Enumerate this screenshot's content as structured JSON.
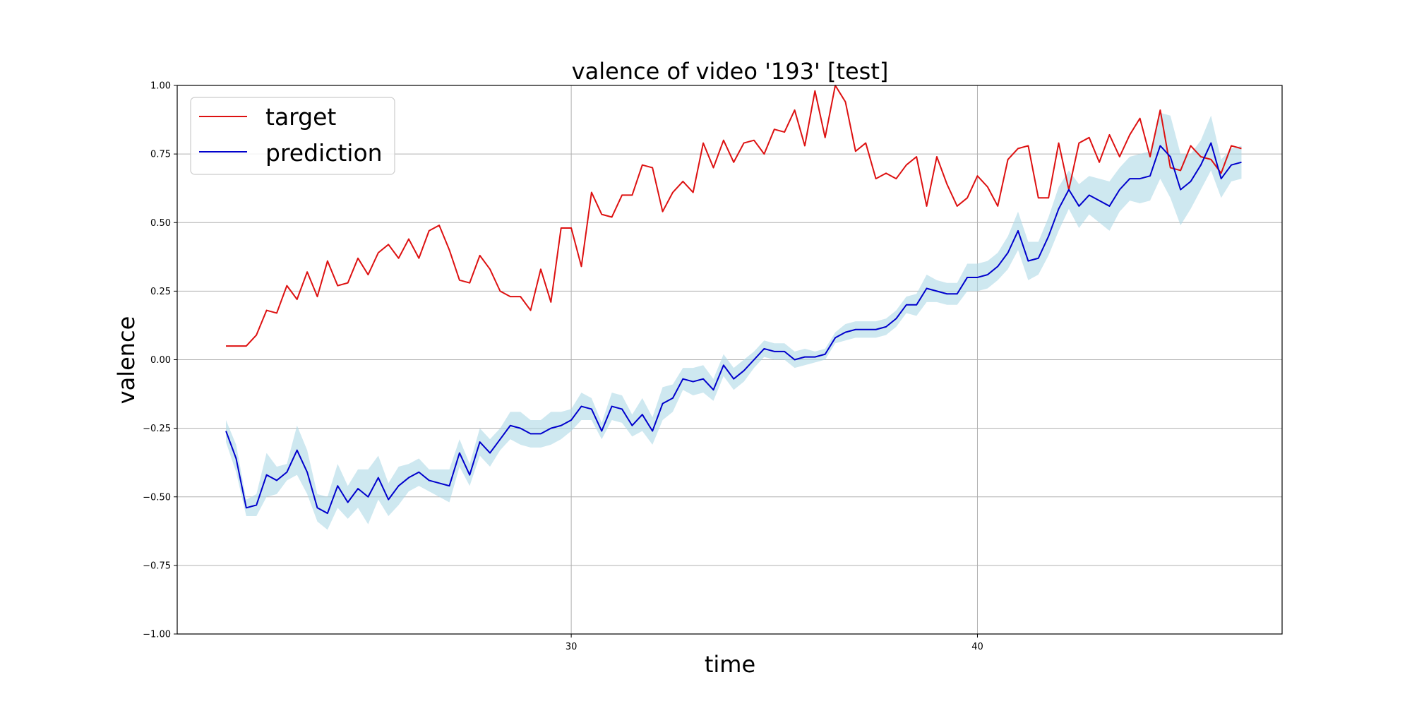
{
  "chart_data": {
    "type": "line",
    "title": "valence of video '193' [test]",
    "xlabel": "time",
    "ylabel": "valence",
    "xlim": [
      20.3,
      47.5
    ],
    "ylim": [
      -1.0,
      1.0
    ],
    "x_ticks": [
      30,
      40
    ],
    "x_tick_labels": [
      "30",
      "40"
    ],
    "y_ticks": [
      -1.0,
      -0.75,
      -0.5,
      -0.25,
      0.0,
      0.25,
      0.5,
      0.75,
      1.0
    ],
    "y_tick_labels": [
      "−1.00",
      "−0.75",
      "−0.50",
      "−0.25",
      "0.00",
      "0.25",
      "0.50",
      "0.75",
      "1.00"
    ],
    "grid": true,
    "legend_position": "top-left",
    "colors": {
      "target": "#dd1111",
      "prediction": "#0000cc",
      "band": "#add8e6"
    },
    "x": [
      21.5,
      21.75,
      22.0,
      22.25,
      22.5,
      22.75,
      23.0,
      23.25,
      23.5,
      23.75,
      24.0,
      24.25,
      24.5,
      24.75,
      25.0,
      25.25,
      25.5,
      25.75,
      26.0,
      26.25,
      26.5,
      26.75,
      27.0,
      27.25,
      27.5,
      27.75,
      28.0,
      28.25,
      28.5,
      28.75,
      29.0,
      29.25,
      29.5,
      29.75,
      30.0,
      30.25,
      30.5,
      30.75,
      31.0,
      31.25,
      31.5,
      31.75,
      32.0,
      32.25,
      32.5,
      32.75,
      33.0,
      33.25,
      33.5,
      33.75,
      34.0,
      34.25,
      34.5,
      34.75,
      35.0,
      35.25,
      35.5,
      35.75,
      36.0,
      36.25,
      36.5,
      36.75,
      37.0,
      37.25,
      37.5,
      37.75,
      38.0,
      38.25,
      38.5,
      38.75,
      39.0,
      39.25,
      39.5,
      39.75,
      40.0,
      40.25,
      40.5,
      40.75,
      41.0,
      41.25,
      41.5,
      41.75,
      42.0,
      42.25,
      42.5,
      42.75,
      43.0,
      43.25,
      43.5,
      43.75,
      44.0,
      44.25,
      44.5,
      44.75,
      45.0,
      45.25,
      45.5,
      45.75,
      46.0,
      46.25,
      46.5
    ],
    "series": [
      {
        "name": "target",
        "values": [
          0.05,
          0.05,
          0.05,
          0.09,
          0.18,
          0.17,
          0.27,
          0.22,
          0.32,
          0.23,
          0.36,
          0.27,
          0.28,
          0.37,
          0.31,
          0.39,
          0.42,
          0.37,
          0.44,
          0.37,
          0.47,
          0.49,
          0.4,
          0.29,
          0.28,
          0.38,
          0.33,
          0.25,
          0.23,
          0.23,
          0.18,
          0.33,
          0.21,
          0.48,
          0.48,
          0.34,
          0.61,
          0.53,
          0.52,
          0.6,
          0.6,
          0.71,
          0.7,
          0.54,
          0.61,
          0.65,
          0.61,
          0.79,
          0.7,
          0.8,
          0.72,
          0.79,
          0.8,
          0.75,
          0.84,
          0.83,
          0.91,
          0.78,
          0.98,
          0.81,
          1.0,
          0.94,
          0.76,
          0.79,
          0.66,
          0.68,
          0.66,
          0.71,
          0.74,
          0.56,
          0.74,
          0.64,
          0.56,
          0.59,
          0.67,
          0.63,
          0.56,
          0.73,
          0.77,
          0.78,
          0.59,
          0.59,
          0.79,
          0.62,
          0.79,
          0.81,
          0.72,
          0.82,
          0.74,
          0.82,
          0.88,
          0.74,
          0.91,
          0.7,
          0.69,
          0.78,
          0.74,
          0.73,
          0.68,
          0.78,
          0.77
        ]
      },
      {
        "name": "prediction",
        "values": [
          -0.26,
          -0.36,
          -0.54,
          -0.53,
          -0.42,
          -0.44,
          -0.41,
          -0.33,
          -0.41,
          -0.54,
          -0.56,
          -0.46,
          -0.52,
          -0.47,
          -0.5,
          -0.43,
          -0.51,
          -0.46,
          -0.43,
          -0.41,
          -0.44,
          -0.45,
          -0.46,
          -0.34,
          -0.42,
          -0.3,
          -0.34,
          -0.29,
          -0.24,
          -0.25,
          -0.27,
          -0.27,
          -0.25,
          -0.24,
          -0.22,
          -0.17,
          -0.18,
          -0.26,
          -0.17,
          -0.18,
          -0.24,
          -0.2,
          -0.26,
          -0.16,
          -0.14,
          -0.07,
          -0.08,
          -0.07,
          -0.11,
          -0.02,
          -0.07,
          -0.04,
          0.0,
          0.04,
          0.03,
          0.03,
          0.0,
          0.01,
          0.01,
          0.02,
          0.08,
          0.1,
          0.11,
          0.11,
          0.11,
          0.12,
          0.15,
          0.2,
          0.2,
          0.26,
          0.25,
          0.24,
          0.24,
          0.3,
          0.3,
          0.31,
          0.34,
          0.39,
          0.47,
          0.36,
          0.37,
          0.45,
          0.55,
          0.62,
          0.56,
          0.6,
          0.58,
          0.56,
          0.62,
          0.66,
          0.66,
          0.67,
          0.78,
          0.74,
          0.62,
          0.65,
          0.71,
          0.79,
          0.66,
          0.71,
          0.72
        ]
      }
    ],
    "band_spread": [
      0.04,
      0.05,
      0.03,
      0.04,
      0.08,
      0.05,
      0.03,
      0.09,
      0.08,
      0.05,
      0.06,
      0.08,
      0.06,
      0.07,
      0.1,
      0.08,
      0.06,
      0.07,
      0.05,
      0.05,
      0.04,
      0.05,
      0.06,
      0.05,
      0.04,
      0.05,
      0.05,
      0.04,
      0.05,
      0.06,
      0.05,
      0.05,
      0.06,
      0.05,
      0.04,
      0.05,
      0.04,
      0.03,
      0.05,
      0.05,
      0.04,
      0.06,
      0.05,
      0.06,
      0.05,
      0.04,
      0.05,
      0.05,
      0.04,
      0.04,
      0.04,
      0.04,
      0.03,
      0.03,
      0.03,
      0.03,
      0.03,
      0.03,
      0.02,
      0.02,
      0.02,
      0.03,
      0.03,
      0.03,
      0.03,
      0.03,
      0.03,
      0.03,
      0.04,
      0.05,
      0.04,
      0.04,
      0.04,
      0.05,
      0.05,
      0.05,
      0.05,
      0.06,
      0.07,
      0.07,
      0.06,
      0.07,
      0.08,
      0.07,
      0.08,
      0.07,
      0.08,
      0.09,
      0.08,
      0.08,
      0.09,
      0.09,
      0.12,
      0.15,
      0.13,
      0.1,
      0.09,
      0.1,
      0.07,
      0.06,
      0.06
    ],
    "legend": [
      {
        "label": "target",
        "color": "#dd1111"
      },
      {
        "label": "prediction",
        "color": "#0000cc"
      }
    ]
  }
}
